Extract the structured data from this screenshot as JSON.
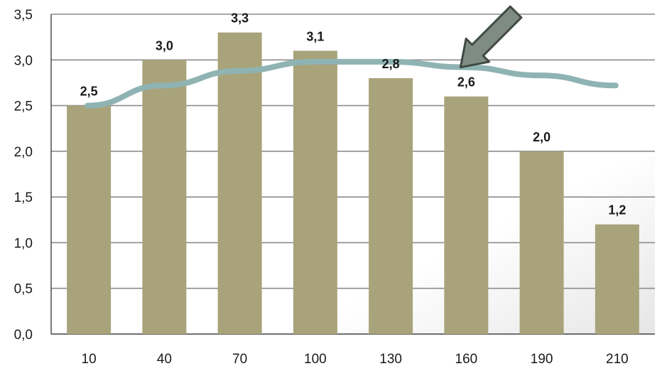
{
  "chart_data": {
    "type": "bar",
    "categories": [
      "10",
      "40",
      "70",
      "100",
      "130",
      "160",
      "190",
      "210"
    ],
    "series": [
      {
        "values": [
          2.5,
          3.0,
          3.3,
          3.1,
          2.8,
          2.6,
          2.0,
          1.2
        ]
      }
    ],
    "data_labels": [
      "2,5",
      "3,0",
      "3,3",
      "3,1",
      "2,8",
      "2,6",
      "2,0",
      "1,2"
    ],
    "trend_line": {
      "x": [
        "10",
        "40",
        "70",
        "100",
        "130",
        "160",
        "190",
        "210"
      ],
      "values": [
        2.5,
        2.72,
        2.88,
        2.98,
        2.98,
        2.92,
        2.83,
        2.72
      ]
    },
    "y_ticks": [
      "0,0",
      "0,5",
      "1,0",
      "1,5",
      "2,0",
      "2,5",
      "3,0",
      "3,5"
    ],
    "ylim": [
      0,
      3.5
    ],
    "ytick_step": 0.5,
    "grid": true,
    "legend": "none",
    "annotation": {
      "type": "arrow",
      "points_to_category": "160"
    },
    "colors": {
      "bar": "#a8a37a",
      "trend": "#8fb3b3",
      "grid": "#8c8c8c",
      "axis": "#404040",
      "arrow_fill": "#7f8c84",
      "arrow_stroke": "#3f4a44"
    }
  }
}
